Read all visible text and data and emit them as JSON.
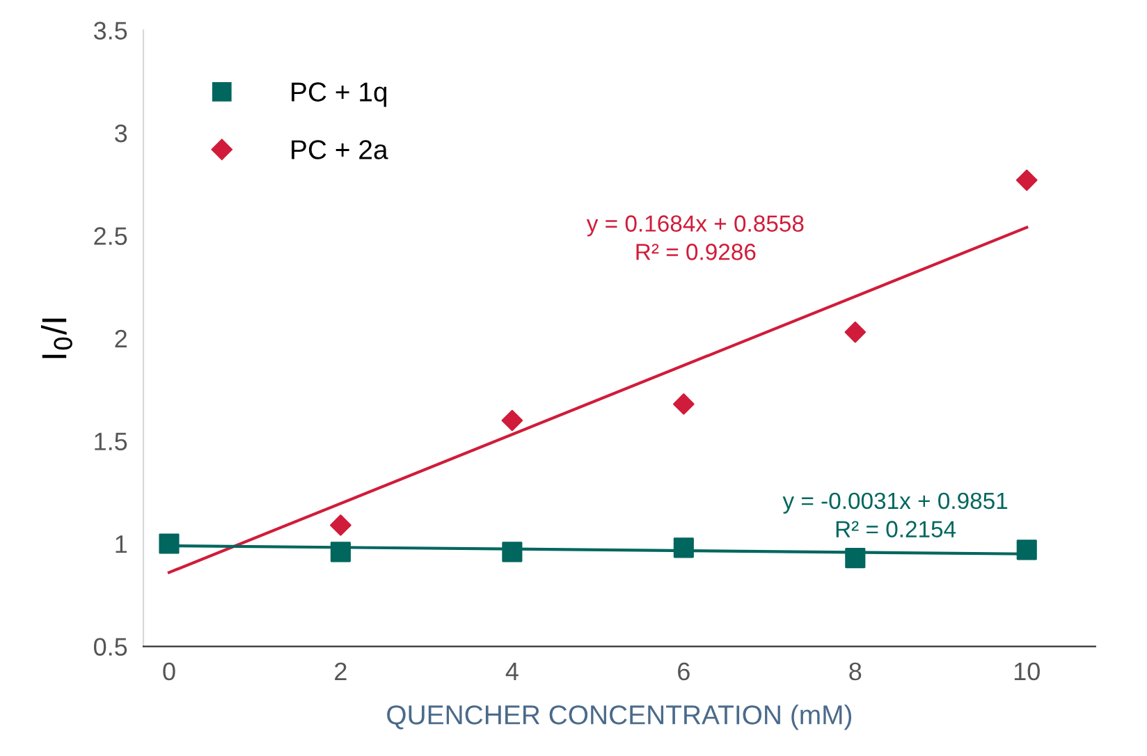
{
  "chart_data": {
    "type": "scatter",
    "xlabel": "QUENCHER CONCENTRATION (mM)",
    "ylabel": "I$_{0}$/I",
    "xlim": [
      -0.3,
      10.8
    ],
    "xticks": [
      0,
      2,
      4,
      6,
      8,
      10
    ],
    "ylim": [
      0.5,
      3.5
    ],
    "yticks": [
      0.5,
      1,
      1.5,
      2,
      2.5,
      3,
      3.5
    ],
    "grid": false,
    "legend": "top left",
    "series": [
      {
        "name": "PC + 1q",
        "marker": "square",
        "color": "#00665e",
        "x": [
          0,
          2,
          4,
          6,
          8,
          10
        ],
        "values": [
          1.0,
          0.96,
          0.96,
          0.98,
          0.93,
          0.97
        ]
      },
      {
        "name": "PC + 2a",
        "marker": "diamond",
        "color": "#d01c3a",
        "x": [
          2,
          4,
          6,
          8,
          10
        ],
        "values": [
          1.09,
          1.6,
          1.68,
          2.03,
          2.77
        ]
      },
      {
        "type": "line",
        "line_style": "solid",
        "color": "#d01c3a",
        "x": [
          0,
          10
        ],
        "values": [
          0.86,
          2.54
        ]
      },
      {
        "type": "line",
        "line_style": "solid",
        "color": "#00665e",
        "x": [
          0,
          10
        ],
        "values": [
          0.99,
          0.95
        ]
      }
    ],
    "annotations": [
      "y = 0.1684x + 0.8558\nR² = 0.9286",
      "y = -0.0031x + 0.9851\nR² = 0.2154"
    ]
  }
}
